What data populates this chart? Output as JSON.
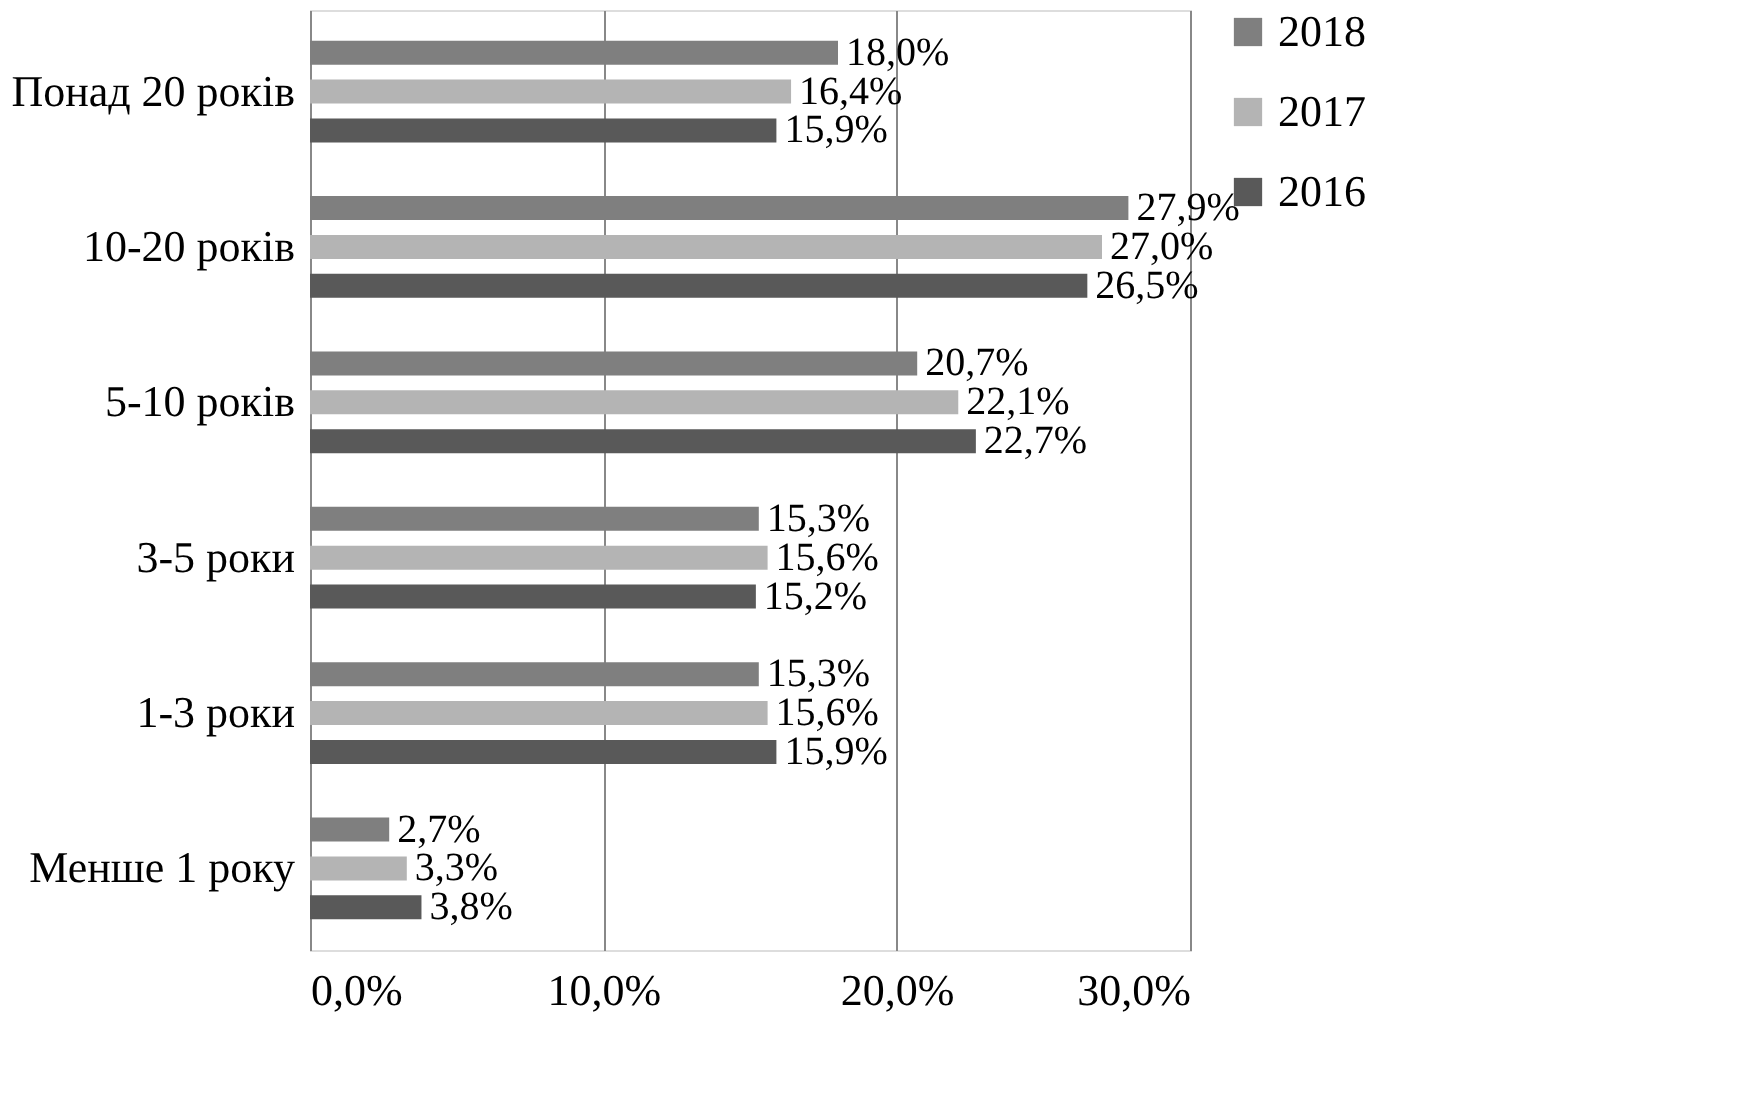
{
  "chart_data": {
    "type": "bar",
    "orientation": "horizontal",
    "categories": [
      "Понад 20 років",
      "10-20 років",
      "5-10 років",
      "3-5 роки",
      "1-3 роки",
      "Менше 1 року"
    ],
    "series": [
      {
        "name": "2018",
        "color": "#7f7f7f",
        "values": [
          18.0,
          27.9,
          20.7,
          15.3,
          15.3,
          2.7
        ],
        "value_labels": [
          "18,0%",
          "27,9%",
          "20,7%",
          "15,3%",
          "15,3%",
          "2,7%"
        ]
      },
      {
        "name": "2017",
        "color": "#b4b4b4",
        "values": [
          16.4,
          27.0,
          22.1,
          15.6,
          15.6,
          3.3
        ],
        "value_labels": [
          "16,4%",
          "27,0%",
          "22,1%",
          "15,6%",
          "15,6%",
          "3,3%"
        ]
      },
      {
        "name": "2016",
        "color": "#595959",
        "values": [
          15.9,
          26.5,
          22.7,
          15.2,
          15.9,
          3.8
        ],
        "value_labels": [
          "15,9%",
          "26,5%",
          "22,7%",
          "15,2%",
          "15,9%",
          "3,8%"
        ]
      }
    ],
    "xlim": [
      0,
      30
    ],
    "xticks": [
      {
        "value": 0,
        "label": "0,0%"
      },
      {
        "value": 10,
        "label": "10,0%"
      },
      {
        "value": 20,
        "label": "20,0%"
      },
      {
        "value": 30,
        "label": "30,0%"
      }
    ],
    "grid": "x",
    "legend": "right"
  }
}
